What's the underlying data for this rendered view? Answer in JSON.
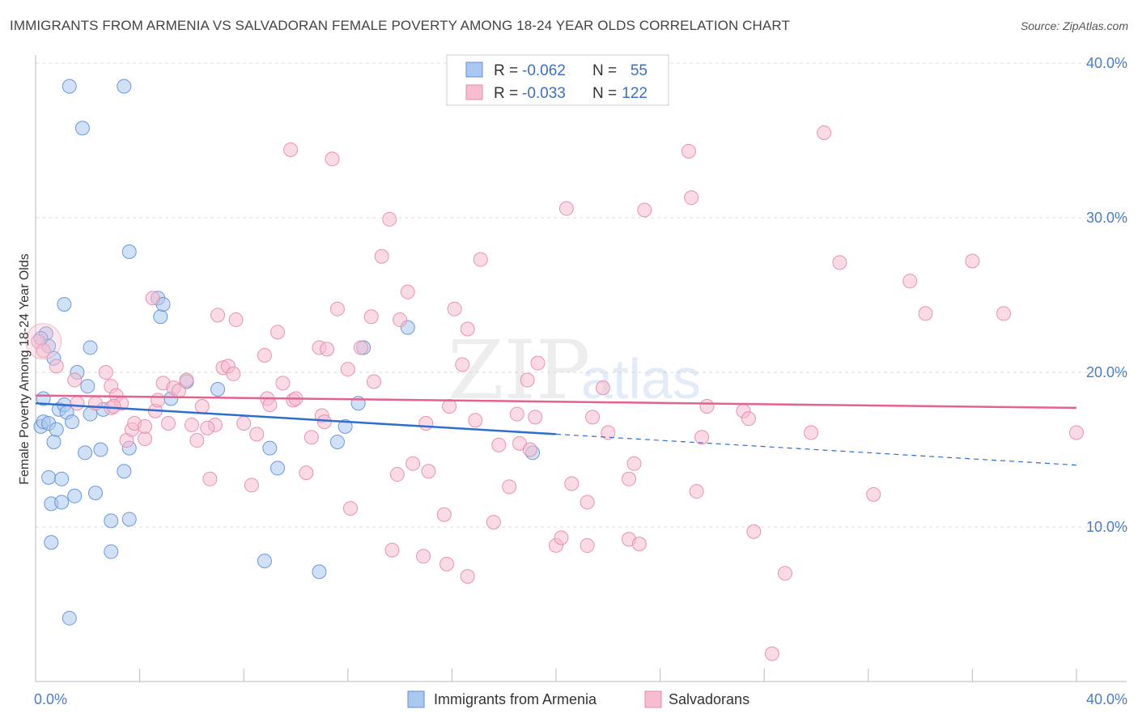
{
  "title": "IMMIGRANTS FROM ARMENIA VS SALVADORAN FEMALE POVERTY AMONG 18-24 YEAR OLDS CORRELATION CHART",
  "source": "Source: ZipAtlas.com",
  "watermark": {
    "zip": "ZIP",
    "atlas": "atlas"
  },
  "colors": {
    "blue_fill": "#aac7ef",
    "blue_stroke": "#5e8fd6",
    "blue_line": "#2f6dd1",
    "pink_fill": "#f6bcd0",
    "pink_stroke": "#e48aab",
    "pink_line": "#e2638e"
  },
  "legend": {
    "r_label": "R =",
    "n_label": "N =",
    "items": [
      {
        "r": "-0.062",
        "n": "55"
      },
      {
        "r": "-0.033",
        "n": "122"
      }
    ]
  },
  "chart_data": {
    "type": "scatter",
    "ylabel": "Female Poverty Among 18-24 Year Olds",
    "xlim": [
      0,
      40
    ],
    "ylim": [
      0,
      40
    ],
    "x_tick_labels": [
      "0.0%",
      "40.0%"
    ],
    "y_ticks": [
      10,
      20,
      30,
      40
    ],
    "y_tick_labels": [
      "10.0%",
      "20.0%",
      "30.0%",
      "40.0%"
    ],
    "grid": true,
    "series": [
      {
        "name": "Immigrants from Armenia",
        "color": "blue",
        "trend": {
          "x0": 0,
          "y0": 18.0,
          "x1": 20,
          "y1": 16.0,
          "dash_x1": 40,
          "dash_y1": 14.0
        },
        "points": [
          [
            0.2,
            16.5
          ],
          [
            0.3,
            18.3
          ],
          [
            0.3,
            16.8
          ],
          [
            0.4,
            22.5
          ],
          [
            0.5,
            21.7
          ],
          [
            0.5,
            16.7
          ],
          [
            0.5,
            13.2
          ],
          [
            0.6,
            11.5
          ],
          [
            0.6,
            9.0
          ],
          [
            0.7,
            20.9
          ],
          [
            0.7,
            15.5
          ],
          [
            0.8,
            16.3
          ],
          [
            0.9,
            17.6
          ],
          [
            1.0,
            11.6
          ],
          [
            1.0,
            13.1
          ],
          [
            1.1,
            24.4
          ],
          [
            1.1,
            17.9
          ],
          [
            1.2,
            17.4
          ],
          [
            1.3,
            38.5
          ],
          [
            1.3,
            4.1
          ],
          [
            1.4,
            16.8
          ],
          [
            1.5,
            12.0
          ],
          [
            1.6,
            20.0
          ],
          [
            1.8,
            35.8
          ],
          [
            1.9,
            14.8
          ],
          [
            2.0,
            19.1
          ],
          [
            2.1,
            21.6
          ],
          [
            2.1,
            17.3
          ],
          [
            2.3,
            12.2
          ],
          [
            2.5,
            15.0
          ],
          [
            2.6,
            17.6
          ],
          [
            2.9,
            10.4
          ],
          [
            2.9,
            8.4
          ],
          [
            3.4,
            13.6
          ],
          [
            3.4,
            38.5
          ],
          [
            3.6,
            27.8
          ],
          [
            3.6,
            15.1
          ],
          [
            3.6,
            10.5
          ],
          [
            4.7,
            24.8
          ],
          [
            4.8,
            23.6
          ],
          [
            4.9,
            24.4
          ],
          [
            5.2,
            18.3
          ],
          [
            5.8,
            19.4
          ],
          [
            7.0,
            18.9
          ],
          [
            9.0,
            15.1
          ],
          [
            9.3,
            13.8
          ],
          [
            8.8,
            7.8
          ],
          [
            10.9,
            7.1
          ],
          [
            11.6,
            15.5
          ],
          [
            11.9,
            16.5
          ],
          [
            12.4,
            18.0
          ],
          [
            12.6,
            21.6
          ],
          [
            14.3,
            22.9
          ],
          [
            19.1,
            14.8
          ],
          [
            0.2,
            22.2
          ]
        ]
      },
      {
        "name": "Salvadorans",
        "color": "pink",
        "trend": {
          "x0": 0,
          "y0": 18.5,
          "x1": 40,
          "y1": 17.7
        },
        "points": [
          [
            0.1,
            22.0
          ],
          [
            0.8,
            20.4
          ],
          [
            1.6,
            18.0
          ],
          [
            2.7,
            20.0
          ],
          [
            2.9,
            19.1
          ],
          [
            2.9,
            17.7
          ],
          [
            3.1,
            18.5
          ],
          [
            3.3,
            18.0
          ],
          [
            3.5,
            15.6
          ],
          [
            3.7,
            16.3
          ],
          [
            3.8,
            16.7
          ],
          [
            4.2,
            15.7
          ],
          [
            4.2,
            16.5
          ],
          [
            4.5,
            24.8
          ],
          [
            4.6,
            17.5
          ],
          [
            4.7,
            18.2
          ],
          [
            4.9,
            19.3
          ],
          [
            5.1,
            16.7
          ],
          [
            5.3,
            19.0
          ],
          [
            5.5,
            18.8
          ],
          [
            5.8,
            19.5
          ],
          [
            6.0,
            16.6
          ],
          [
            6.2,
            15.6
          ],
          [
            6.4,
            17.8
          ],
          [
            6.7,
            13.1
          ],
          [
            6.9,
            16.6
          ],
          [
            7.0,
            23.7
          ],
          [
            7.2,
            20.3
          ],
          [
            7.4,
            20.4
          ],
          [
            7.6,
            19.9
          ],
          [
            7.7,
            23.4
          ],
          [
            8.0,
            16.7
          ],
          [
            8.3,
            12.7
          ],
          [
            8.5,
            16.0
          ],
          [
            8.8,
            21.1
          ],
          [
            8.9,
            18.3
          ],
          [
            9.0,
            17.9
          ],
          [
            9.3,
            22.6
          ],
          [
            9.5,
            19.3
          ],
          [
            9.8,
            34.4
          ],
          [
            9.9,
            18.2
          ],
          [
            10.0,
            18.3
          ],
          [
            10.4,
            13.5
          ],
          [
            10.6,
            15.8
          ],
          [
            10.9,
            21.6
          ],
          [
            11.0,
            17.2
          ],
          [
            11.1,
            16.8
          ],
          [
            11.2,
            21.5
          ],
          [
            11.4,
            33.8
          ],
          [
            11.6,
            24.1
          ],
          [
            12.0,
            20.2
          ],
          [
            12.1,
            11.2
          ],
          [
            12.5,
            21.6
          ],
          [
            12.9,
            23.6
          ],
          [
            13.0,
            19.4
          ],
          [
            13.3,
            27.5
          ],
          [
            13.6,
            29.9
          ],
          [
            13.7,
            8.5
          ],
          [
            13.9,
            13.4
          ],
          [
            14.0,
            23.4
          ],
          [
            14.3,
            25.2
          ],
          [
            14.5,
            14.1
          ],
          [
            14.9,
            8.1
          ],
          [
            15.0,
            16.7
          ],
          [
            15.1,
            13.6
          ],
          [
            15.7,
            10.8
          ],
          [
            15.8,
            7.6
          ],
          [
            15.9,
            17.8
          ],
          [
            16.1,
            24.1
          ],
          [
            16.4,
            20.5
          ],
          [
            16.6,
            22.8
          ],
          [
            16.6,
            6.8
          ],
          [
            16.9,
            16.9
          ],
          [
            17.1,
            27.3
          ],
          [
            17.6,
            10.3
          ],
          [
            17.8,
            15.3
          ],
          [
            18.2,
            12.6
          ],
          [
            18.5,
            17.3
          ],
          [
            18.6,
            15.4
          ],
          [
            18.9,
            19.5
          ],
          [
            19.0,
            15.0
          ],
          [
            19.2,
            17.1
          ],
          [
            19.3,
            20.6
          ],
          [
            20.0,
            8.8
          ],
          [
            20.2,
            9.3
          ],
          [
            20.4,
            30.6
          ],
          [
            20.6,
            12.8
          ],
          [
            21.2,
            8.8
          ],
          [
            21.2,
            11.6
          ],
          [
            21.4,
            17.1
          ],
          [
            21.8,
            19.0
          ],
          [
            22.0,
            16.1
          ],
          [
            22.8,
            9.2
          ],
          [
            22.8,
            13.1
          ],
          [
            23.0,
            14.1
          ],
          [
            23.2,
            8.9
          ],
          [
            23.4,
            30.5
          ],
          [
            25.1,
            34.3
          ],
          [
            25.2,
            31.3
          ],
          [
            25.4,
            12.3
          ],
          [
            25.6,
            15.8
          ],
          [
            25.8,
            17.8
          ],
          [
            27.2,
            17.5
          ],
          [
            27.4,
            17.0
          ],
          [
            27.6,
            9.7
          ],
          [
            28.3,
            1.8
          ],
          [
            28.8,
            7.0
          ],
          [
            29.8,
            16.1
          ],
          [
            30.3,
            35.5
          ],
          [
            30.9,
            27.1
          ],
          [
            32.2,
            12.1
          ],
          [
            33.6,
            25.9
          ],
          [
            34.2,
            23.8
          ],
          [
            36.0,
            27.2
          ],
          [
            37.2,
            23.8
          ],
          [
            40.0,
            16.1
          ],
          [
            0.3,
            21.4
          ],
          [
            1.5,
            19.5
          ],
          [
            2.3,
            18.0
          ],
          [
            3.0,
            17.8
          ],
          [
            6.6,
            16.4
          ]
        ]
      }
    ]
  },
  "bottom_legend": [
    "Immigrants from Armenia",
    "Salvadorans"
  ]
}
